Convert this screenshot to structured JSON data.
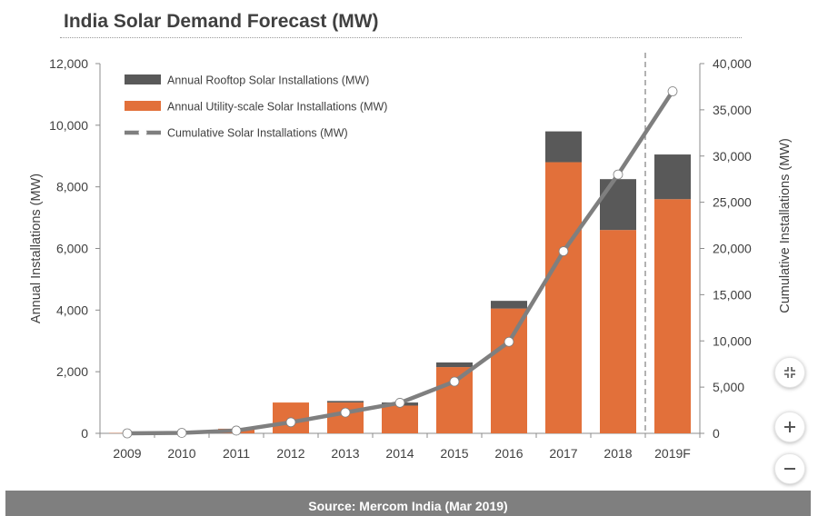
{
  "title": "India Solar Demand Forecast (MW)",
  "source": "Source: Mercom India (Mar 2019)",
  "colors": {
    "rooftop": "#595959",
    "utility": "#e2703a",
    "cumulative_line": "#7f7f7f",
    "marker": "#ffffff",
    "forecast_divider": "#7f7f7f",
    "source_bar": "#7f7f7f"
  },
  "icons": {
    "fit": "collapse-arrows-icon",
    "zoom_in": "plus-icon",
    "zoom_out": "minus-icon"
  },
  "chart_data": {
    "type": "bar",
    "stacked": true,
    "title": "India Solar Demand Forecast (MW)",
    "xlabel": "",
    "ylabel": "Annual Installations (MW)",
    "y2label": "Cumulative Installations (MW)",
    "ylim": [
      0,
      12000
    ],
    "y2lim": [
      0,
      40000
    ],
    "yticks": [
      0,
      2000,
      4000,
      6000,
      8000,
      10000,
      12000
    ],
    "yticklabels": [
      "0",
      "2,000",
      "4,000",
      "6,000",
      "8,000",
      "10,000",
      "12,000"
    ],
    "y2ticks": [
      0,
      5000,
      10000,
      15000,
      20000,
      25000,
      30000,
      35000,
      40000
    ],
    "y2ticklabels": [
      "0",
      "5,000",
      "10,000",
      "15,000",
      "20,000",
      "25,000",
      "30,000",
      "35,000",
      "40,000"
    ],
    "categories": [
      "2009",
      "2010",
      "2011",
      "2012",
      "2013",
      "2014",
      "2015",
      "2016",
      "2017",
      "2018",
      "2019F"
    ],
    "forecast_divider_after": "2018",
    "legend_position": "top-left",
    "series": [
      {
        "name": "Annual Utility-scale Solar Installations (MW)",
        "kind": "bar",
        "axis": "left",
        "values": [
          10,
          20,
          150,
          1000,
          1000,
          900,
          2150,
          4050,
          8800,
          6600,
          7600
        ]
      },
      {
        "name": "Annual Rooftop Solar Installations (MW)",
        "kind": "bar",
        "axis": "left",
        "values": [
          0,
          0,
          0,
          0,
          50,
          100,
          150,
          250,
          1000,
          1650,
          1450
        ]
      },
      {
        "name": "Cumulative Solar Installations (MW)",
        "kind": "line",
        "axis": "right",
        "values": [
          0,
          50,
          300,
          1200,
          2250,
          3300,
          5600,
          9900,
          19700,
          28000,
          37000
        ]
      }
    ],
    "legend_order": [
      "Annual Rooftop Solar Installations (MW)",
      "Annual Utility-scale Solar Installations (MW)",
      "Cumulative Solar Installations (MW)"
    ]
  }
}
